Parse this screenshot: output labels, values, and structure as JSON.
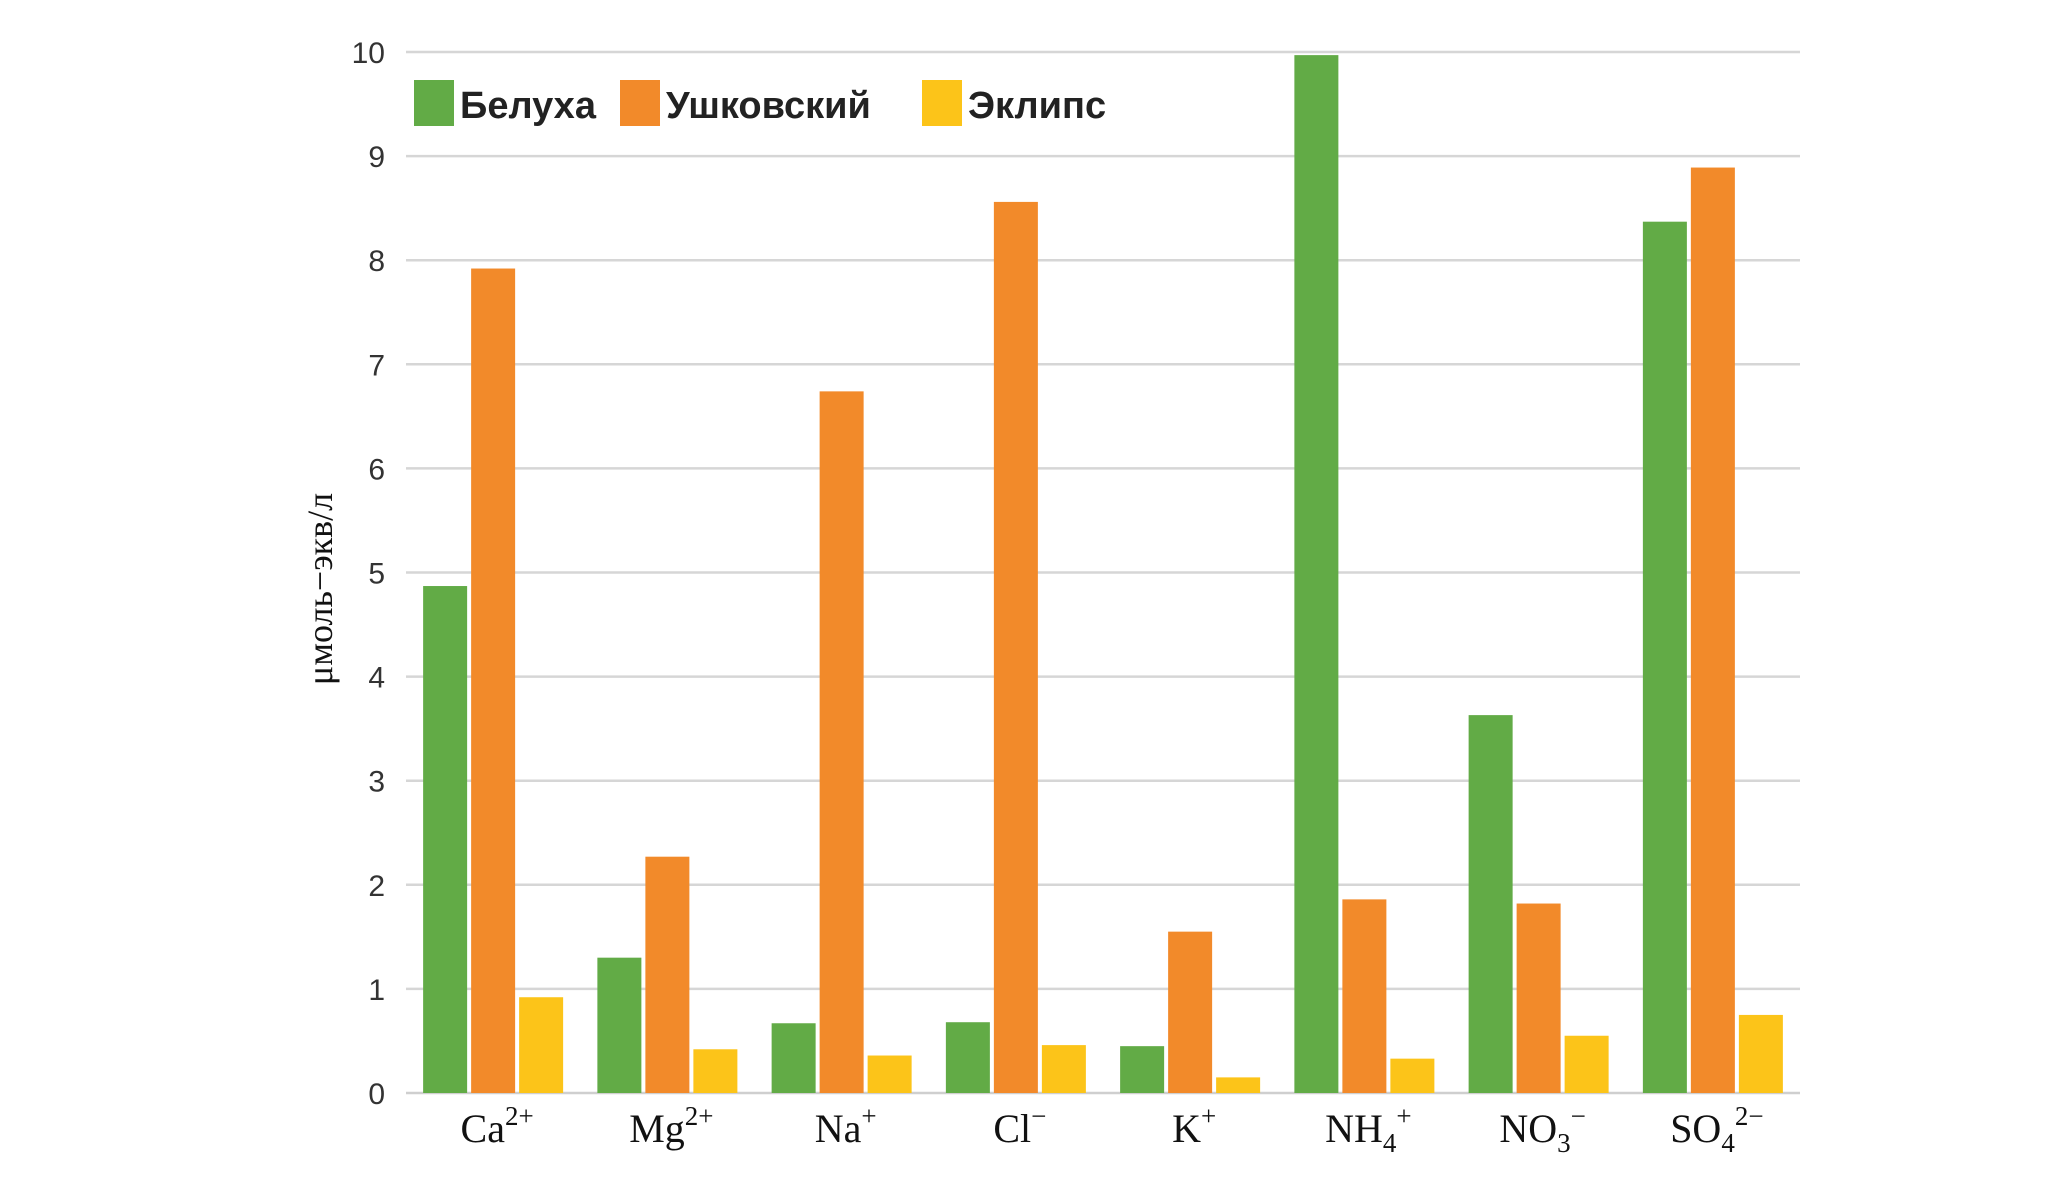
{
  "chart_data": {
    "type": "bar",
    "ylabel": "μмоль−экв/л",
    "ylim": [
      0,
      10
    ],
    "yticks": [
      "0",
      "1",
      "2",
      "3",
      "4",
      "5",
      "6",
      "7",
      "8",
      "9",
      "10"
    ],
    "grid": true,
    "legend_position": "top-left",
    "categories": [
      "Ca2+",
      "Mg2+",
      "Na+",
      "Cl−",
      "K+",
      "NH4+",
      "NO3−",
      "SO42−"
    ],
    "category_labels": [
      {
        "base": "Ca",
        "sub": "",
        "sup": "2+"
      },
      {
        "base": "Mg",
        "sub": "",
        "sup": "2+"
      },
      {
        "base": "Na",
        "sub": "",
        "sup": "+"
      },
      {
        "base": "Cl",
        "sub": "",
        "sup": "−"
      },
      {
        "base": "K",
        "sub": "",
        "sup": "+"
      },
      {
        "base": "NH",
        "sub": "4",
        "sup": "+"
      },
      {
        "base": "NO",
        "sub": "3",
        "sup": "−"
      },
      {
        "base": "SO",
        "sub": "4",
        "sup": "2−"
      }
    ],
    "series": [
      {
        "name": "Белуха",
        "color": "#62ab46",
        "values": [
          4.87,
          1.3,
          0.67,
          0.68,
          0.45,
          9.97,
          3.63,
          8.37
        ]
      },
      {
        "name": "Ушковский",
        "color": "#f28a2a",
        "values": [
          7.92,
          2.27,
          6.74,
          8.56,
          1.55,
          1.86,
          1.82,
          8.89
        ]
      },
      {
        "name": "Эклипс",
        "color": "#fcc419",
        "values": [
          0.92,
          0.42,
          0.36,
          0.46,
          0.15,
          0.33,
          0.55,
          0.75
        ]
      }
    ]
  }
}
